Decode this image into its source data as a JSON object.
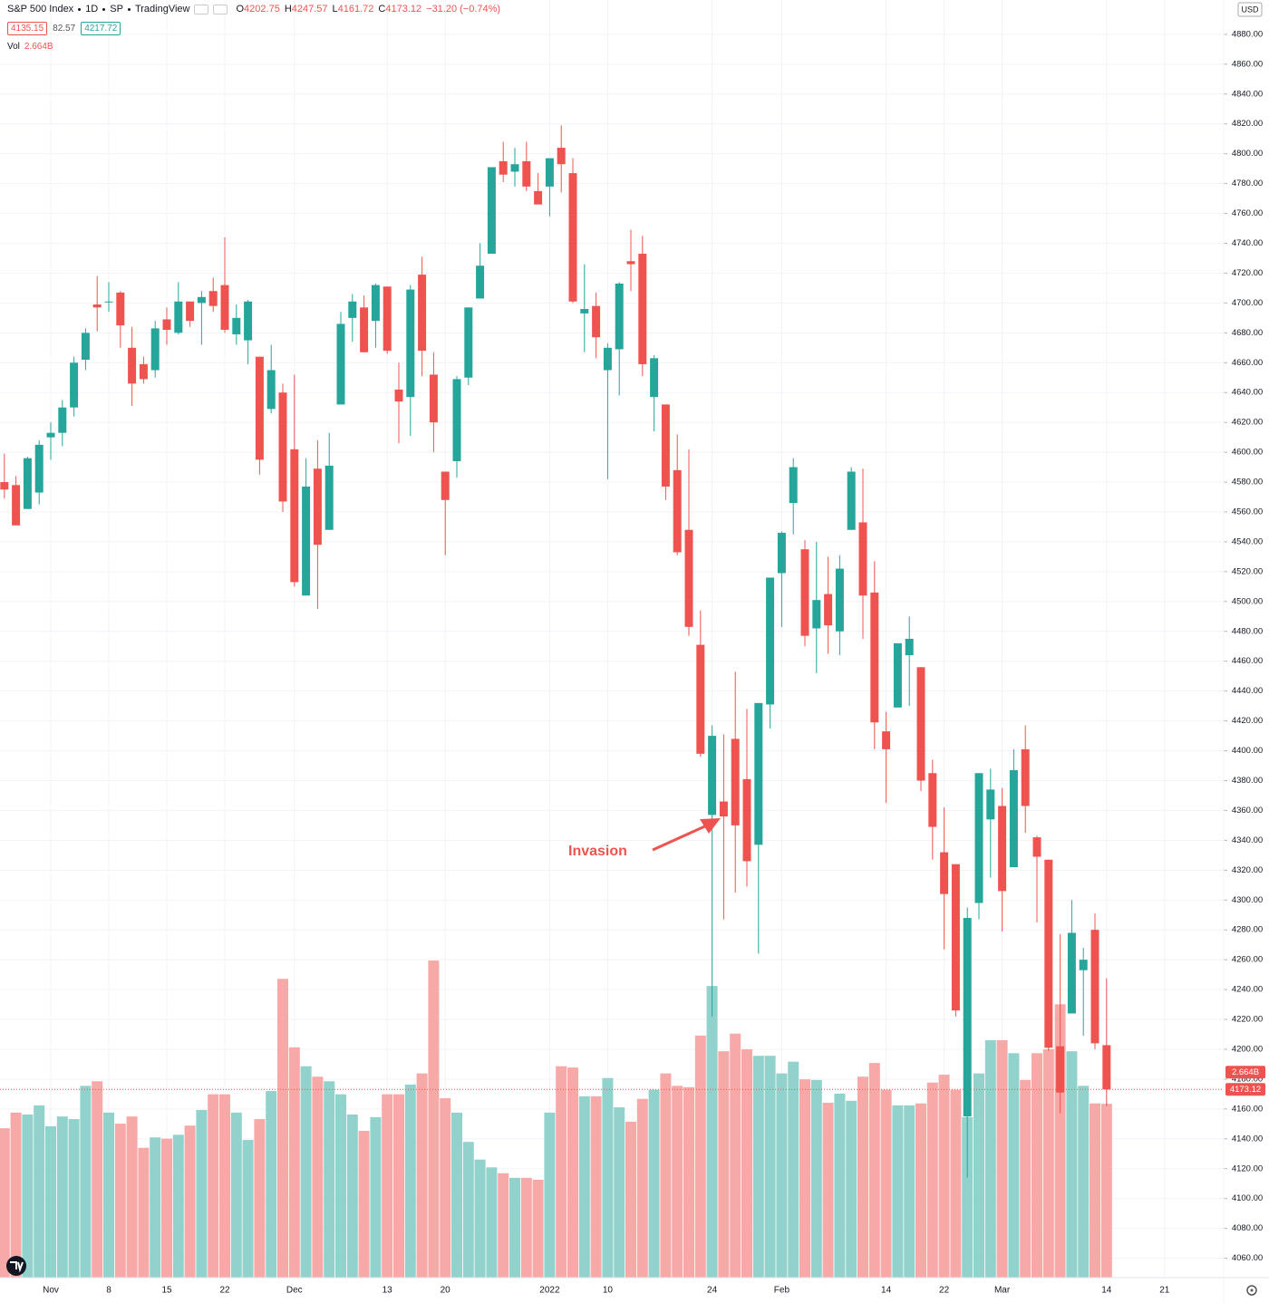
{
  "chart_data": {
    "type": "candlestick",
    "title": "S&P 500 Index",
    "interval": "1D",
    "exchange": "SP",
    "source": "TradingView",
    "ohlc_legend": [
      {
        "label": "O",
        "value": "4202.75"
      },
      {
        "label": "H",
        "value": "4247.57"
      },
      {
        "label": "L",
        "value": "4161.72"
      },
      {
        "label": "C",
        "value": "4173.12"
      }
    ],
    "change": "−31.20 (−0.74%)",
    "quote": {
      "bid": "4135.15",
      "spread": "82.57",
      "ask": "4217.72"
    },
    "volume_label": "Vol",
    "volume_text": "2.664B",
    "currency": "USD",
    "annotation": "Invasion",
    "categories": [
      null,
      null,
      null,
      null,
      "Nov",
      null,
      null,
      null,
      null,
      "8",
      null,
      null,
      null,
      null,
      "15",
      null,
      null,
      null,
      null,
      "22",
      null,
      null,
      null,
      null,
      null,
      "Dec",
      null,
      null,
      null,
      null,
      null,
      null,
      null,
      "13",
      null,
      null,
      null,
      null,
      "20",
      null,
      null,
      null,
      null,
      null,
      null,
      null,
      null,
      "2022",
      null,
      null,
      null,
      null,
      "10",
      null,
      null,
      null,
      null,
      null,
      null,
      null,
      null,
      "24",
      null,
      null,
      null,
      null,
      null,
      "Feb",
      null,
      null,
      null,
      null,
      null,
      null,
      null,
      null,
      "14",
      null,
      null,
      null,
      null,
      "22",
      null,
      null,
      null,
      null,
      "Mar",
      null,
      null,
      null,
      null,
      null,
      null,
      null,
      null,
      "14",
      null,
      null,
      null,
      null,
      "21"
    ],
    "open": [
      4580,
      4578,
      4562,
      4573,
      4610,
      4613,
      4630,
      4662,
      4699,
      4701,
      4707,
      4670,
      4659,
      4655,
      4689,
      4680,
      4701,
      4700,
      4708,
      4712,
      4679,
      4675,
      4664,
      4629,
      4640,
      4602,
      4504,
      4589,
      4548,
      4632,
      4690,
      4697,
      4688,
      4711,
      4642,
      4637,
      4719,
      4652,
      4587,
      4594,
      4650,
      4703,
      4733,
      4795,
      4788,
      4795,
      4775,
      4778,
      4804,
      4787,
      4693,
      4698,
      4655,
      4669,
      4728,
      4733,
      4637,
      4632,
      4588,
      4548,
      4471,
      4357,
      4366,
      4408,
      4381,
      4337,
      4431,
      4519,
      4566,
      4535,
      4482,
      4505,
      4480,
      4548,
      4553,
      4506,
      4413,
      4429,
      4464,
      4456,
      4385,
      4332,
      4324,
      4155,
      4298,
      4354,
      4363,
      4322,
      4401,
      4342,
      4327,
      4202,
      4224,
      4253,
      4280,
      4202.75,
      null,
      null,
      null,
      null,
      null
    ],
    "high": [
      4599,
      4584,
      4597,
      4608,
      4620,
      4635,
      4664,
      4683,
      4718,
      4714,
      4708,
      4684,
      4664,
      4688,
      4697,
      4714,
      4701,
      4708,
      4717,
      4744,
      4699,
      4702,
      4664,
      4672,
      4646,
      4652,
      4596,
      4608,
      4613,
      4694,
      4706,
      4705,
      4713,
      4711,
      4660,
      4712,
      4731,
      4667,
      4587,
      4651,
      4697,
      4740,
      4791,
      4808,
      4804,
      4808,
      4787,
      4797,
      4819,
      4797,
      4726,
      4707,
      4673,
      4714,
      4749,
      4745,
      4665,
      4632,
      4612,
      4602,
      4494,
      4417,
      4411,
      4453,
      4428,
      4432,
      4516,
      4547,
      4596,
      4541,
      4540,
      4530,
      4531,
      4590,
      4589,
      4527,
      4426,
      4472,
      4490,
      4456,
      4394,
      4362,
      4324,
      4295,
      4385,
      4388,
      4375,
      4401,
      4417,
      4343,
      4327,
      4277,
      4300,
      4268,
      4291,
      4247.57,
      null,
      null,
      null,
      null,
      null
    ],
    "low": [
      4569,
      4551,
      4562,
      4565,
      4595,
      4604,
      4624,
      4655,
      4681,
      4694,
      4670,
      4631,
      4646,
      4650,
      4672,
      4679,
      4684,
      4672,
      4694,
      4680,
      4672,
      4659,
      4585,
      4626,
      4560,
      4510,
      4504,
      4495,
      4548,
      4632,
      4674,
      4667,
      4670,
      4666,
      4606,
      4611,
      4651,
      4600,
      4531,
      4583,
      4645,
      4703,
      4733,
      4781,
      4778,
      4775,
      4766,
      4758,
      4774,
      4700,
      4667,
      4663,
      4582,
      4638,
      4708,
      4651,
      4614,
      4568,
      4531,
      4477,
      4396,
      4222,
      4287,
      4305,
      4309,
      4264,
      4415,
      4483,
      4545,
      4470,
      4452,
      4465,
      4464,
      4548,
      4475,
      4401,
      4365,
      4429,
      4430,
      4373,
      4327,
      4267,
      4222,
      4114,
      4287,
      4315,
      4279,
      4322,
      4345,
      4285,
      4199,
      4157,
      4224,
      4209,
      4200,
      4161.72,
      null,
      null,
      null,
      null,
      null
    ],
    "close": [
      4575,
      4551,
      4596,
      4605,
      4613,
      4630,
      4660,
      4680,
      4697,
      4701,
      4685,
      4646,
      4649,
      4683,
      4682,
      4701,
      4688,
      4704,
      4698,
      4682,
      4690,
      4701,
      4595,
      4655,
      4567,
      4513,
      4577,
      4538,
      4591,
      4686,
      4701,
      4667,
      4712,
      4668,
      4634,
      4709,
      4668,
      4620,
      4568,
      4649,
      4697,
      4725,
      4791,
      4786,
      4793,
      4778,
      4766,
      4797,
      4793,
      4701,
      4696,
      4677,
      4670,
      4713,
      4726,
      4659,
      4663,
      4577,
      4533,
      4483,
      4398,
      4410,
      4356,
      4350,
      4326,
      4432,
      4516,
      4546,
      4590,
      4477,
      4501,
      4484,
      4522,
      4587,
      4504,
      4419,
      4401,
      4472,
      4475,
      4380,
      4349,
      4304,
      4226,
      4288,
      4385,
      4374,
      4306,
      4387,
      4363,
      4329,
      4201,
      4171,
      4278,
      4260,
      4204,
      4173.12,
      null,
      null,
      null,
      null,
      null
    ],
    "volume": [
      2.29,
      2.53,
      2.5,
      2.64,
      2.32,
      2.47,
      2.43,
      2.94,
      3.01,
      2.53,
      2.36,
      2.47,
      1.99,
      2.15,
      2.13,
      2.19,
      2.33,
      2.57,
      2.81,
      2.81,
      2.53,
      2.11,
      2.43,
      2.86,
      4.58,
      3.53,
      3.24,
      3.08,
      3.01,
      2.81,
      2.5,
      2.25,
      2.46,
      2.81,
      2.81,
      2.96,
      3.13,
      4.86,
      2.75,
      2.53,
      2.08,
      1.81,
      1.69,
      1.6,
      1.53,
      1.53,
      1.5,
      2.53,
      3.24,
      3.22,
      2.78,
      2.78,
      3.06,
      2.61,
      2.39,
      2.74,
      2.88,
      3.13,
      2.94,
      2.92,
      3.71,
      4.47,
      3.47,
      3.74,
      3.5,
      3.4,
      3.4,
      3.13,
      3.31,
      3.04,
      3.03,
      2.68,
      2.82,
      2.71,
      3.08,
      3.29,
      2.88,
      2.64,
      2.64,
      2.67,
      2.99,
      3.11,
      2.88,
      2.46,
      3.13,
      3.64,
      3.64,
      3.44,
      3.03,
      3.44,
      3.5,
      4.19,
      3.47,
      2.94,
      2.67,
      2.664,
      null,
      null,
      null,
      null,
      null
    ],
    "up_color": "#26a69a",
    "down_color": "#ef5350",
    "volume_up_color": "#92d2cc",
    "volume_down_color": "#f7a9a7",
    "grid": true,
    "ylim": [
      4047,
      4903
    ],
    "yticks": [
      {
        "value": 4060,
        "label": "4060.00"
      },
      {
        "value": 4080,
        "label": "4080.00"
      },
      {
        "value": 4100,
        "label": "4100.00"
      },
      {
        "value": 4120,
        "label": "4120.00"
      },
      {
        "value": 4140,
        "label": "4140.00"
      },
      {
        "value": 4160,
        "label": "4160.00"
      },
      {
        "value": 4180,
        "label": "4180.00"
      },
      {
        "value": 4200,
        "label": "4200.00"
      },
      {
        "value": 4220,
        "label": "4220.00"
      },
      {
        "value": 4240,
        "label": "4240.00"
      },
      {
        "value": 4260,
        "label": "4260.00"
      },
      {
        "value": 4280,
        "label": "4280.00"
      },
      {
        "value": 4300,
        "label": "4300.00"
      },
      {
        "value": 4320,
        "label": "4320.00"
      },
      {
        "value": 4340,
        "label": "4340.00"
      },
      {
        "value": 4360,
        "label": "4360.00"
      },
      {
        "value": 4380,
        "label": "4380.00"
      },
      {
        "value": 4400,
        "label": "4400.00"
      },
      {
        "value": 4420,
        "label": "4420.00"
      },
      {
        "value": 4440,
        "label": "4440.00"
      },
      {
        "value": 4460,
        "label": "4460.00"
      },
      {
        "value": 4480,
        "label": "4480.00"
      },
      {
        "value": 4500,
        "label": "4500.00"
      },
      {
        "value": 4520,
        "label": "4520.00"
      },
      {
        "value": 4540,
        "label": "4540.00"
      },
      {
        "value": 4560,
        "label": "4560.00"
      },
      {
        "value": 4580,
        "label": "4580.00"
      },
      {
        "value": 4600,
        "label": "4600.00"
      },
      {
        "value": 4620,
        "label": "4620.00"
      },
      {
        "value": 4640,
        "label": "4640.00"
      },
      {
        "value": 4660,
        "label": "4660.00"
      },
      {
        "value": 4680,
        "label": "4680.00"
      },
      {
        "value": 4700,
        "label": "4700.00"
      },
      {
        "value": 4720,
        "label": "4720.00"
      },
      {
        "value": 4740,
        "label": "4740.00"
      },
      {
        "value": 4760,
        "label": "4760.00"
      },
      {
        "value": 4780,
        "label": "4780.00"
      },
      {
        "value": 4800,
        "label": "4800.00"
      },
      {
        "value": 4820,
        "label": "4820.00"
      },
      {
        "value": 4840,
        "label": "4840.00"
      },
      {
        "value": 4860,
        "label": "4860.00"
      },
      {
        "value": 4880,
        "label": "4880.00"
      }
    ]
  }
}
